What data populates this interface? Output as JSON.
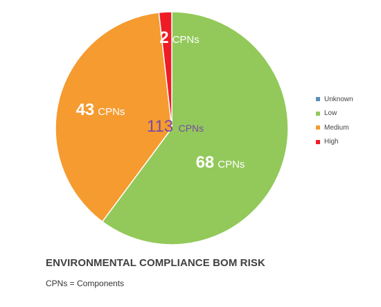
{
  "chart_data": {
    "type": "pie",
    "title": "ENVIRONMENTAL COMPLIANCE BOM RISK",
    "subtitle": "CPNs = Components",
    "total_label": {
      "value": "113",
      "unit": "CPNs"
    },
    "unit": "CPNs",
    "legend_position": "right",
    "slices": [
      {
        "name": "Unknown",
        "value": 0,
        "color": "#5b8fb9"
      },
      {
        "name": "Low",
        "value": 68,
        "color": "#92c95a"
      },
      {
        "name": "Medium",
        "value": 43,
        "color": "#f59b30"
      },
      {
        "name": "High",
        "value": 2,
        "color": "#ee1c25"
      }
    ]
  }
}
